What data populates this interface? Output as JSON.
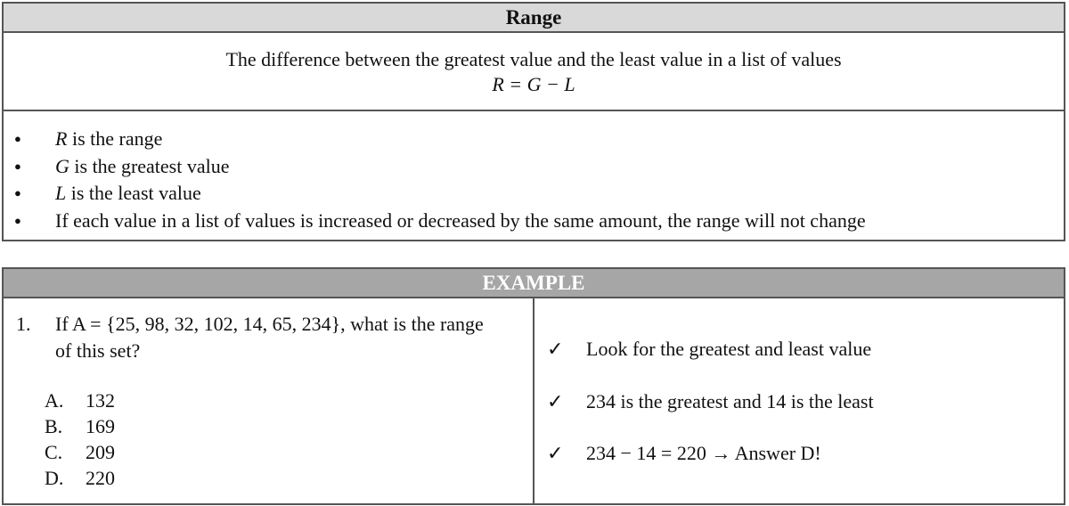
{
  "definition": {
    "title": "Range",
    "text": "The difference between the greatest value and the least value in a list of values",
    "formula": "R = G − L",
    "bullets": [
      {
        "var": "R",
        "text": " is the range"
      },
      {
        "var": "G",
        "text": " is the greatest value"
      },
      {
        "var": "L",
        "text": " is the least value"
      },
      {
        "var": "",
        "text": "If each value in a list of values is increased or decreased by the same amount, the range will not change"
      }
    ]
  },
  "example": {
    "title": "EXAMPLE",
    "number": "1.",
    "question": "If A = {25, 98, 32, 102, 14, 65, 234}, what is the range of this set?",
    "options": [
      {
        "letter": "A.",
        "value": "132"
      },
      {
        "letter": "B.",
        "value": "169"
      },
      {
        "letter": "C.",
        "value": "209"
      },
      {
        "letter": "D.",
        "value": "220"
      }
    ],
    "check_icon": "✓",
    "steps": [
      "Look for the greatest and least value",
      "234 is the greatest and 14 is the least",
      "234 − 14 = 220 → Answer D!"
    ]
  }
}
